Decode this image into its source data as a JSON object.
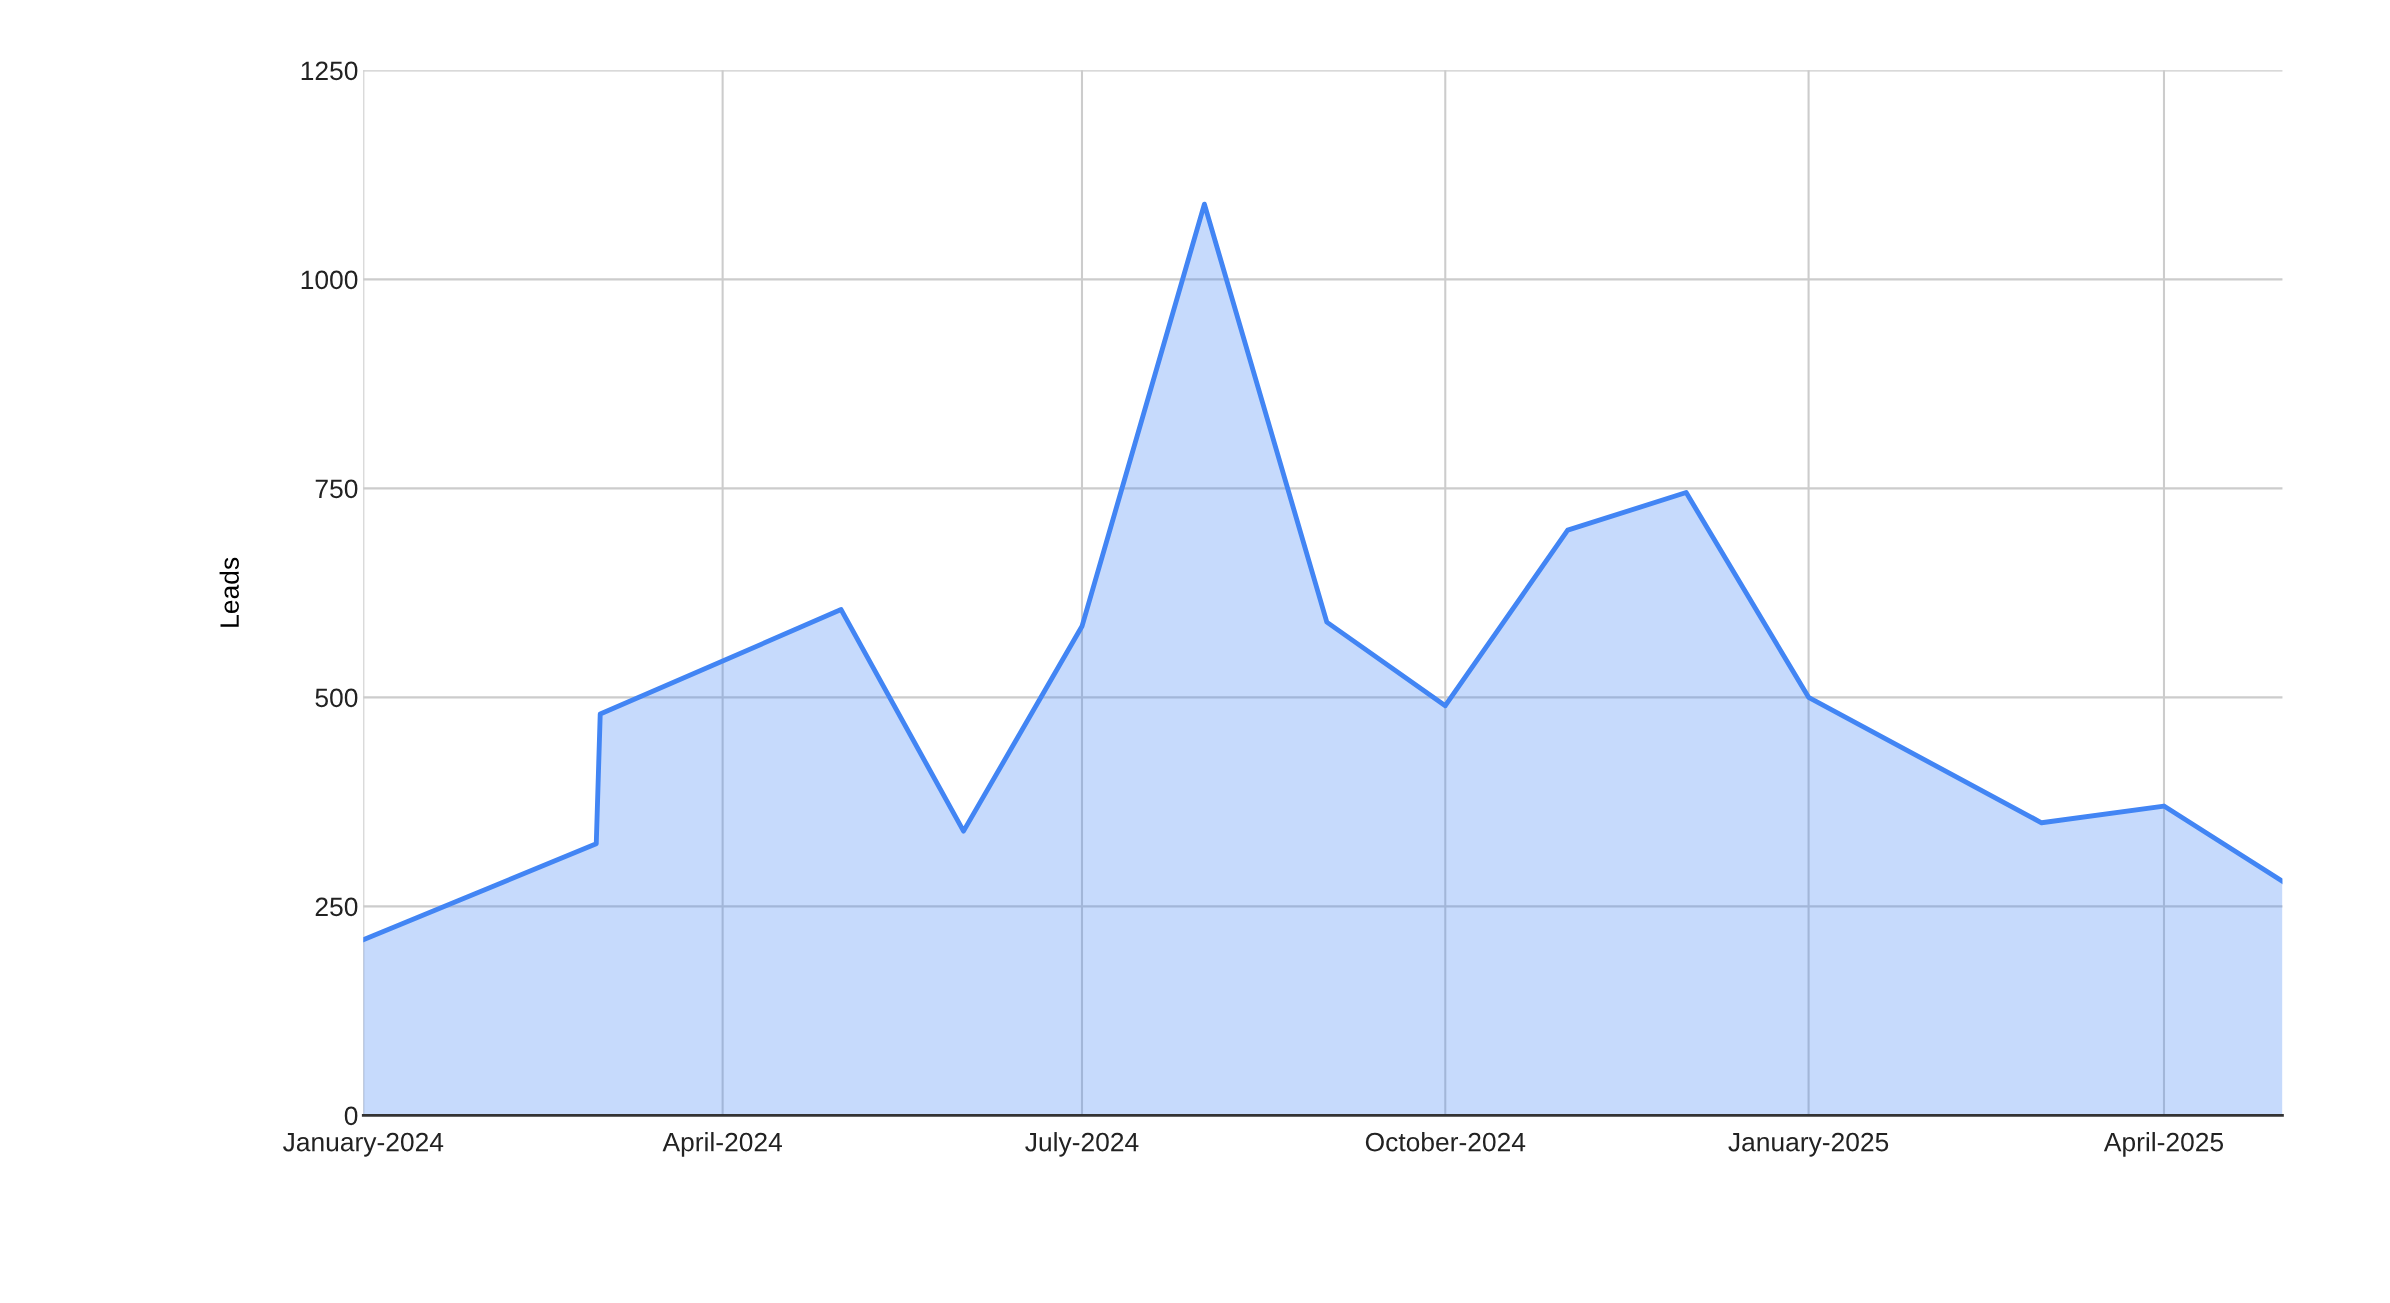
{
  "chart_data": {
    "type": "area",
    "ylabel": "Leads",
    "x": [
      "2024-01-01",
      "2024-02-29",
      "2024-03-01",
      "2024-05-01",
      "2024-06-01",
      "2024-07-01",
      "2024-08-01",
      "2024-09-01",
      "2024-10-01",
      "2024-11-01",
      "2024-12-01",
      "2025-01-01",
      "2025-03-01",
      "2025-04-01",
      "2025-05-01"
    ],
    "series": [
      {
        "color": "#4285f4",
        "values": [
          210,
          325,
          480,
          605,
          340,
          585,
          1090,
          590,
          490,
          700,
          745,
          500,
          350,
          370,
          280
        ]
      }
    ],
    "xlim": [
      "2024-01-01",
      "2025-05-01"
    ],
    "xticks": [
      {
        "value": "2024-01-01",
        "label": "January-2024"
      },
      {
        "value": "2024-04-01",
        "label": "April-2024"
      },
      {
        "value": "2024-07-01",
        "label": "July-2024"
      },
      {
        "value": "2024-10-01",
        "label": "October-2024"
      },
      {
        "value": "2025-01-01",
        "label": "January-2025"
      },
      {
        "value": "2025-04-01",
        "label": "April-2025"
      }
    ],
    "ylim": [
      0,
      1250
    ],
    "yticks": [
      0,
      250,
      500,
      750,
      1000,
      1250
    ],
    "grid": true,
    "legend": false,
    "marker": "none",
    "line_style": "solid"
  }
}
